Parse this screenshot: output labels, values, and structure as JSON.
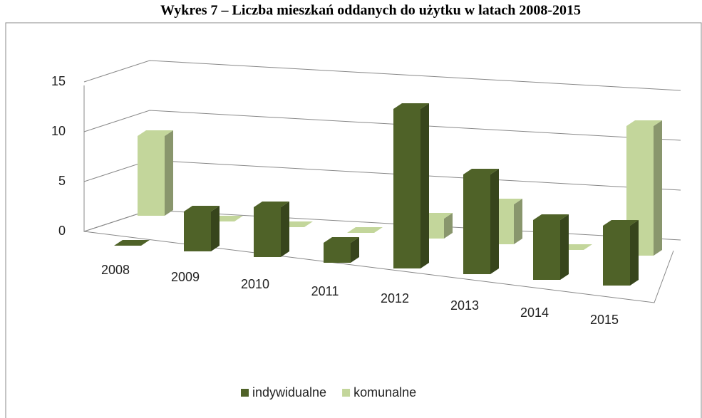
{
  "chart_data": {
    "type": "bar3d",
    "title": "Wykres 7 – Liczba mieszkań oddanych do użytku w latach 2008-2015",
    "categories": [
      "2008",
      "2009",
      "2010",
      "2011",
      "2012",
      "2013",
      "2014",
      "2015"
    ],
    "series": [
      {
        "name": "indywidualne",
        "color": "#4f6228",
        "values": [
          0,
          4,
          5,
          2,
          16,
          10,
          6,
          6
        ]
      },
      {
        "name": "komunalne",
        "color": "#c3d69b",
        "values": [
          8,
          0,
          0,
          0,
          2,
          4,
          0,
          13
        ]
      }
    ],
    "ylim": [
      0,
      15
    ],
    "yticks": [
      0,
      5,
      10,
      15
    ],
    "grid": true,
    "legend": "bottom"
  }
}
